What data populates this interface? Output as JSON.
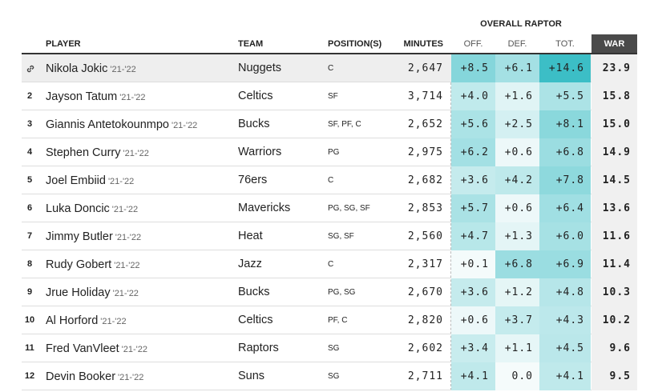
{
  "group_header": "OVERALL RAPTOR",
  "columns": [
    "PLAYER",
    "TEAM",
    "POSITION(S)",
    "MINUTES",
    "OFF.",
    "DEF.",
    "TOT.",
    "WAR"
  ],
  "rows": [
    {
      "player": "Nikola Jokic",
      "season": "'21-'22",
      "team": "Nuggets",
      "position": "C",
      "minutes": "2,647",
      "off": "+8.5",
      "def": "+6.1",
      "tot": "+14.6",
      "war": "23.9"
    },
    {
      "rank": "2",
      "player": "Jayson Tatum",
      "season": "'21-'22",
      "team": "Celtics",
      "position": "SF",
      "minutes": "3,714",
      "off": "+4.0",
      "def": "+1.6",
      "tot": "+5.5",
      "war": "15.8"
    },
    {
      "rank": "3",
      "player": "Giannis Antetokounmpo",
      "season": "'21-'22",
      "team": "Bucks",
      "position": "SF, PF, C",
      "minutes": "2,652",
      "off": "+5.6",
      "def": "+2.5",
      "tot": "+8.1",
      "war": "15.0"
    },
    {
      "rank": "4",
      "player": "Stephen Curry",
      "season": "'21-'22",
      "team": "Warriors",
      "position": "PG",
      "minutes": "2,975",
      "off": "+6.2",
      "def": "+0.6",
      "tot": "+6.8",
      "war": "14.9"
    },
    {
      "rank": "5",
      "player": "Joel Embiid",
      "season": "'21-'22",
      "team": "76ers",
      "position": "C",
      "minutes": "2,682",
      "off": "+3.6",
      "def": "+4.2",
      "tot": "+7.8",
      "war": "14.5"
    },
    {
      "rank": "6",
      "player": "Luka Doncic",
      "season": "'21-'22",
      "team": "Mavericks",
      "position": "PG, SG, SF",
      "minutes": "2,853",
      "off": "+5.7",
      "def": "+0.6",
      "tot": "+6.4",
      "war": "13.6"
    },
    {
      "rank": "7",
      "player": "Jimmy Butler",
      "season": "'21-'22",
      "team": "Heat",
      "position": "SG, SF",
      "minutes": "2,560",
      "off": "+4.7",
      "def": "+1.3",
      "tot": "+6.0",
      "war": "11.6"
    },
    {
      "rank": "8",
      "player": "Rudy Gobert",
      "season": "'21-'22",
      "team": "Jazz",
      "position": "C",
      "minutes": "2,317",
      "off": "+0.1",
      "def": "+6.8",
      "tot": "+6.9",
      "war": "11.4"
    },
    {
      "rank": "9",
      "player": "Jrue Holiday",
      "season": "'21-'22",
      "team": "Bucks",
      "position": "PG, SG",
      "minutes": "2,670",
      "off": "+3.6",
      "def": "+1.2",
      "tot": "+4.8",
      "war": "10.3"
    },
    {
      "rank": "10",
      "player": "Al Horford",
      "season": "'21-'22",
      "team": "Celtics",
      "position": "PF, C",
      "minutes": "2,820",
      "off": "+0.6",
      "def": "+3.7",
      "tot": "+4.3",
      "war": "10.2"
    },
    {
      "rank": "11",
      "player": "Fred VanVleet",
      "season": "'21-'22",
      "team": "Raptors",
      "position": "SG",
      "minutes": "2,602",
      "off": "+3.4",
      "def": "+1.1",
      "tot": "+4.5",
      "war": "9.6"
    },
    {
      "rank": "12",
      "player": "Devin Booker",
      "season": "'21-'22",
      "team": "Suns",
      "position": "SG",
      "minutes": "2,711",
      "off": "+4.1",
      "def": "0.0",
      "tot": "+4.1",
      "war": "9.5"
    }
  ]
}
